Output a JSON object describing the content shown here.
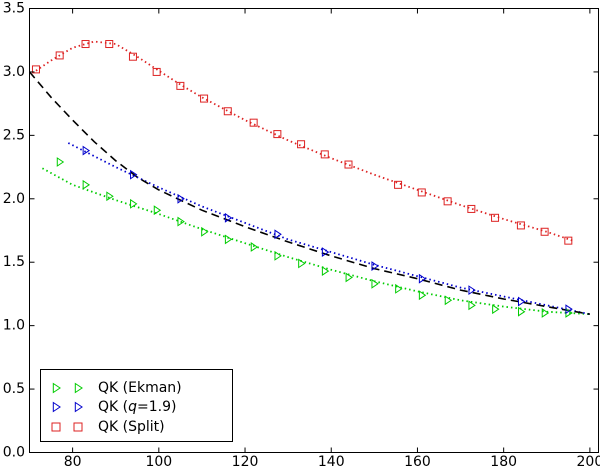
{
  "chart_data": {
    "type": "scatter",
    "xlim": [
      70,
      202
    ],
    "ylim": [
      0.0,
      3.5
    ],
    "x_ticks": [
      "80",
      "100",
      "120",
      "140",
      "160",
      "180",
      "200"
    ],
    "x_tick_values": [
      80,
      100,
      120,
      140,
      160,
      180,
      200
    ],
    "y_ticks": [
      "0.0",
      "0.5",
      "1.0",
      "1.5",
      "2.0",
      "2.5",
      "3.0",
      "3.5"
    ],
    "y_tick_values": [
      0.0,
      0.5,
      1.0,
      1.5,
      2.0,
      2.5,
      3.0,
      3.5
    ],
    "grid": false,
    "legend_position": "bottom-left",
    "series": [
      {
        "name": "QK (Ekman)",
        "color": "#00cc00",
        "marker": "triangle-right",
        "x": [
          77,
          83,
          88.5,
          94,
          99.5,
          105,
          110.5,
          116,
          122,
          127.5,
          133,
          138.5,
          144,
          150,
          155.5,
          161,
          167,
          172.5,
          178,
          184,
          189.5,
          195
        ],
        "y": [
          2.29,
          2.11,
          2.02,
          1.96,
          1.91,
          1.82,
          1.74,
          1.68,
          1.62,
          1.55,
          1.49,
          1.43,
          1.38,
          1.33,
          1.29,
          1.24,
          1.2,
          1.16,
          1.13,
          1.11,
          1.1,
          1.1
        ]
      },
      {
        "name": "QK (q=1.9)",
        "name_plain": "QK (",
        "name_italic": "q",
        "name_rest": "=1.9)",
        "color": "#0000cc",
        "marker": "triangle-right",
        "x": [
          83,
          94,
          105,
          116,
          127.5,
          138.5,
          150,
          161,
          172.5,
          184,
          195
        ],
        "y": [
          2.38,
          2.19,
          2.0,
          1.85,
          1.72,
          1.58,
          1.47,
          1.37,
          1.28,
          1.19,
          1.13
        ]
      },
      {
        "name": "QK (Split)",
        "color": "#dd2222",
        "marker": "square",
        "x": [
          71.5,
          77,
          83,
          88.5,
          94,
          99.5,
          105,
          110.5,
          116,
          122,
          127.5,
          133,
          138.5,
          144,
          155.5,
          161,
          167,
          172.5,
          178,
          184,
          189.5,
          195
        ],
        "y": [
          3.02,
          3.13,
          3.22,
          3.22,
          3.12,
          3.0,
          2.89,
          2.79,
          2.69,
          2.6,
          2.51,
          2.43,
          2.35,
          2.27,
          2.11,
          2.05,
          1.98,
          1.92,
          1.85,
          1.79,
          1.74,
          1.67
        ]
      }
    ],
    "fit_lines": [
      {
        "series": "QK (Ekman)",
        "style": "dotted",
        "color": "#00cc00",
        "x": [
          73,
          80,
          90,
          100,
          110,
          120,
          130,
          140,
          150,
          160,
          170,
          180,
          190,
          200
        ],
        "y": [
          2.24,
          2.11,
          1.99,
          1.88,
          1.76,
          1.65,
          1.54,
          1.44,
          1.35,
          1.27,
          1.2,
          1.15,
          1.11,
          1.09
        ]
      },
      {
        "series": "QK (q=1.9)",
        "style": "dotted",
        "color": "#0000cc",
        "x": [
          79,
          90,
          100,
          110,
          120,
          130,
          140,
          150,
          160,
          170,
          180,
          190,
          200
        ],
        "y": [
          2.44,
          2.25,
          2.09,
          1.94,
          1.81,
          1.68,
          1.58,
          1.48,
          1.39,
          1.3,
          1.23,
          1.16,
          1.09
        ]
      },
      {
        "series": "QK (Split)",
        "style": "dotted",
        "color": "#dd2222",
        "x": [
          71.5,
          75,
          80,
          85,
          90,
          95,
          100,
          105,
          110,
          120,
          130,
          140,
          150,
          160,
          170,
          180,
          190,
          196
        ],
        "y": [
          3.01,
          3.09,
          3.19,
          3.24,
          3.22,
          3.12,
          3.01,
          2.9,
          2.8,
          2.62,
          2.46,
          2.32,
          2.19,
          2.07,
          1.95,
          1.84,
          1.74,
          1.67
        ]
      },
      {
        "series": "model",
        "style": "dashed",
        "color": "#000000",
        "x": [
          70,
          75,
          80,
          85,
          90,
          95,
          100,
          105,
          110,
          120,
          130,
          140,
          150,
          160,
          170,
          180,
          190,
          200
        ],
        "y": [
          3.0,
          2.8,
          2.62,
          2.45,
          2.3,
          2.17,
          2.07,
          1.99,
          1.91,
          1.78,
          1.66,
          1.55,
          1.45,
          1.37,
          1.28,
          1.21,
          1.15,
          1.09
        ]
      }
    ]
  }
}
